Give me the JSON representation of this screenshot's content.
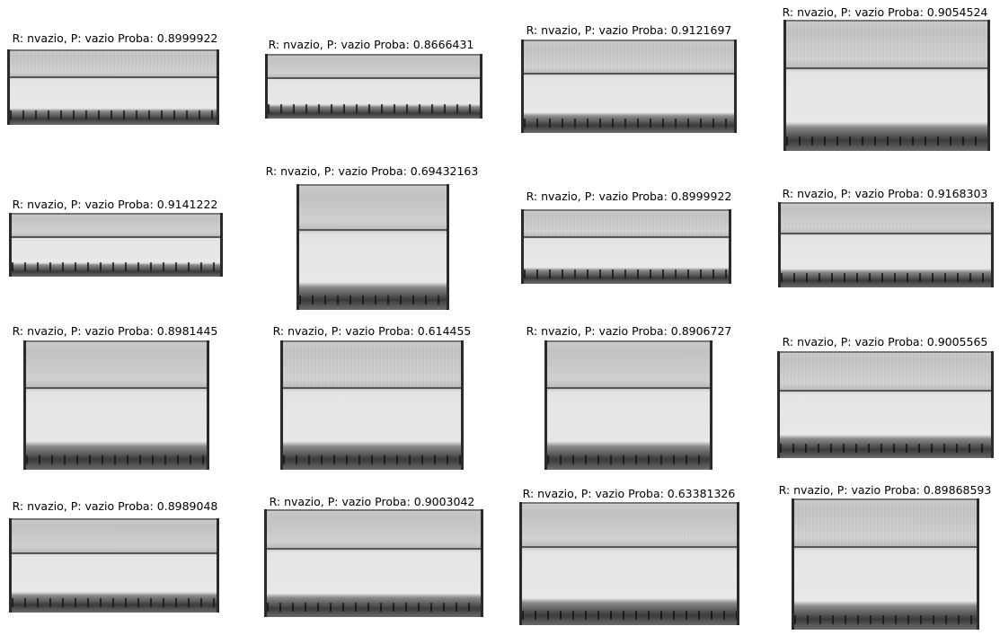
{
  "panels": [
    {
      "caption": "R: nvazio,  P: vazio Proba: 0.8999922"
    },
    {
      "caption": "R: nvazio,  P: vazio Proba: 0.8666431"
    },
    {
      "caption": "R: nvazio,  P: vazio Proba: 0.9121697"
    },
    {
      "caption": "R: nvazio,  P: vazio Proba: 0.9054524"
    },
    {
      "caption": "R: nvazio,  P: vazio Proba: 0.9141222"
    },
    {
      "caption": "R: nvazio,  P: vazio Proba: 0.69432163"
    },
    {
      "caption": "R: nvazio,  P: vazio Proba: 0.8999922"
    },
    {
      "caption": "R: nvazio,  P: vazio Proba: 0.9168303"
    },
    {
      "caption": "R: nvazio,  P: vazio Proba: 0.8981445"
    },
    {
      "caption": "R: nvazio,  P: vazio Proba: 0.614455"
    },
    {
      "caption": "R: nvazio,  P: vazio Proba: 0.8906727"
    },
    {
      "caption": "R: nvazio,  P: vazio Proba: 0.9005565"
    },
    {
      "caption": "R: nvazio,  P: vazio Proba: 0.8989048"
    },
    {
      "caption": "R: nvazio,  P: vazio Proba: 0.9003042"
    },
    {
      "caption": "R: nvazio,  P: vazio Proba: 0.63381326"
    },
    {
      "caption": "R: nvazio,  P: vazio Proba: 0.89868593"
    }
  ]
}
